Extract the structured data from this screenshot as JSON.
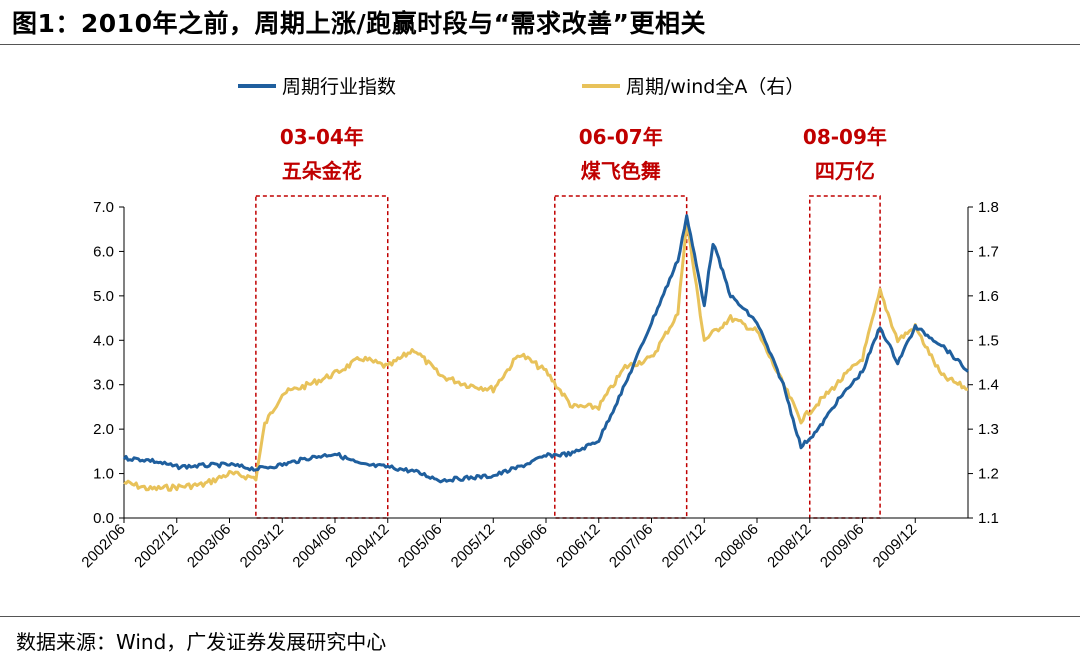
{
  "header": {
    "title": "图1：2010年之前，周期上涨/跑赢时段与“需求改善”更相关"
  },
  "footer": {
    "source": "数据来源：Wind，广发证券发展研究中心"
  },
  "colors": {
    "primary": "#1f5f9e",
    "secondary": "#e8c25a",
    "annotation": "#c00000"
  },
  "chart_data": {
    "type": "line",
    "title": "",
    "xlabel": "",
    "ylabel": "",
    "y_left": {
      "ylim": [
        0,
        7
      ],
      "ticks": [
        "0.0",
        "1.0",
        "2.0",
        "3.0",
        "4.0",
        "5.0",
        "6.0",
        "7.0"
      ]
    },
    "y_right": {
      "ylim": [
        1.1,
        1.8
      ],
      "ticks": [
        "1.1",
        "1.2",
        "1.3",
        "1.4",
        "1.5",
        "1.6",
        "1.7",
        "1.8"
      ]
    },
    "x_tick_labels": [
      "2002/06",
      "2002/12",
      "2003/06",
      "2003/12",
      "2004/06",
      "2004/12",
      "2005/06",
      "2005/12",
      "2006/06",
      "2006/12",
      "2007/06",
      "2007/12",
      "2008/06",
      "2008/12",
      "2009/06",
      "2009/12"
    ],
    "grid": false,
    "legend": "top",
    "series": [
      {
        "name": "周期行业指数",
        "axis": "left",
        "x": [
          "2002/06",
          "2002/09",
          "2002/12",
          "2003/03",
          "2003/06",
          "2003/09",
          "2003/12",
          "2004/03",
          "2004/06",
          "2004/09",
          "2004/12",
          "2005/03",
          "2005/06",
          "2005/09",
          "2005/12",
          "2006/03",
          "2006/06",
          "2006/09",
          "2006/12",
          "2007/03",
          "2007/06",
          "2007/09",
          "2007/10",
          "2007/12",
          "2008/01",
          "2008/03",
          "2008/06",
          "2008/09",
          "2008/11",
          "2009/01",
          "2009/03",
          "2009/06",
          "2009/08",
          "2009/10",
          "2009/12",
          "2010/03",
          "2010/06"
        ],
        "values": [
          1.35,
          1.3,
          1.15,
          1.18,
          1.2,
          1.1,
          1.2,
          1.35,
          1.45,
          1.2,
          1.15,
          1.05,
          0.85,
          0.9,
          0.95,
          1.15,
          1.4,
          1.45,
          1.75,
          3.0,
          4.4,
          5.8,
          6.8,
          4.8,
          6.2,
          5.0,
          4.4,
          3.0,
          1.6,
          2.0,
          2.6,
          3.3,
          4.3,
          3.5,
          4.3,
          3.9,
          3.3
        ]
      },
      {
        "name": "周期/wind全A（右）",
        "axis": "right",
        "x": [
          "2002/06",
          "2002/09",
          "2002/12",
          "2003/03",
          "2003/06",
          "2003/09",
          "2003/10",
          "2003/12",
          "2004/03",
          "2004/06",
          "2004/09",
          "2004/12",
          "2005/03",
          "2005/06",
          "2005/09",
          "2005/12",
          "2006/03",
          "2006/06",
          "2006/09",
          "2006/12",
          "2007/03",
          "2007/06",
          "2007/09",
          "2007/10",
          "2007/12",
          "2008/03",
          "2008/06",
          "2008/09",
          "2008/11",
          "2009/01",
          "2009/03",
          "2009/06",
          "2009/08",
          "2009/10",
          "2009/12",
          "2010/03",
          "2010/06"
        ],
        "values": [
          1.18,
          1.165,
          1.17,
          1.175,
          1.2,
          1.19,
          1.31,
          1.38,
          1.4,
          1.425,
          1.46,
          1.44,
          1.48,
          1.42,
          1.4,
          1.39,
          1.47,
          1.43,
          1.35,
          1.35,
          1.44,
          1.46,
          1.56,
          1.77,
          1.5,
          1.55,
          1.52,
          1.4,
          1.32,
          1.36,
          1.4,
          1.46,
          1.61,
          1.5,
          1.53,
          1.42,
          1.39
        ]
      }
    ],
    "annotations": [
      {
        "label": "03-04年",
        "sublabel": "五朵金花",
        "x_start": "2003/09",
        "x_end": "2004/12"
      },
      {
        "label": "06-07年",
        "sublabel": "煤飞色舞",
        "x_start": "2006/07",
        "x_end": "2007/10"
      },
      {
        "label": "08-09年",
        "sublabel": "四万亿",
        "x_start": "2008/12",
        "x_end": "2009/08"
      }
    ]
  }
}
